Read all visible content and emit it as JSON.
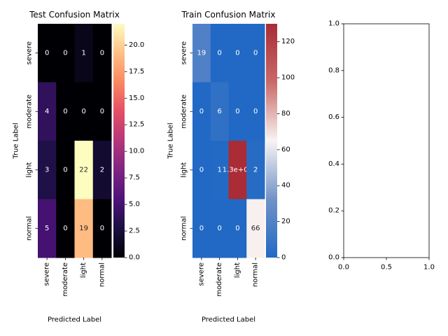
{
  "chart_data": [
    {
      "type": "heatmap",
      "title": "Test Confusion Matrix",
      "xlabel": "Predicted Label",
      "ylabel": "True Label",
      "x_categories": [
        "severe",
        "moderate",
        "light",
        "normal"
      ],
      "y_categories": [
        "severe",
        "moderate",
        "light",
        "normal"
      ],
      "values": [
        [
          0,
          0,
          1,
          0
        ],
        [
          4,
          0,
          0,
          0
        ],
        [
          3,
          0,
          22,
          2
        ],
        [
          5,
          0,
          19,
          0
        ]
      ],
      "cell_labels": [
        [
          "0",
          "0",
          "1",
          "0"
        ],
        [
          "4",
          "0",
          "0",
          "0"
        ],
        [
          "3",
          "0",
          "22",
          "2"
        ],
        [
          "5",
          "0",
          "19",
          "0"
        ]
      ],
      "colormap": "magma",
      "colorbar": {
        "min": 0,
        "max": 22,
        "ticks": [
          "0.0",
          "2.5",
          "5.0",
          "7.5",
          "10.0",
          "12.5",
          "15.0",
          "17.5",
          "20.0"
        ]
      }
    },
    {
      "type": "heatmap",
      "title": "Train Confusion Matrix",
      "xlabel": "Predicted Label",
      "ylabel": "True Label",
      "x_categories": [
        "severe",
        "moderate",
        "light",
        "normal"
      ],
      "y_categories": [
        "severe",
        "moderate",
        "light",
        "normal"
      ],
      "values": [
        [
          19,
          0,
          0,
          0
        ],
        [
          0,
          6,
          0,
          0
        ],
        [
          0,
          1,
          130,
          2
        ],
        [
          0,
          0,
          0,
          66
        ]
      ],
      "cell_labels": [
        [
          "19",
          "0",
          "0",
          "0"
        ],
        [
          "0",
          "6",
          "0",
          "0"
        ],
        [
          "0",
          "1",
          "1.3e+02",
          "2"
        ],
        [
          "0",
          "0",
          "0",
          "66"
        ]
      ],
      "colormap": "vlag",
      "colorbar": {
        "min": 0,
        "max": 130,
        "ticks": [
          "0",
          "20",
          "40",
          "60",
          "80",
          "100",
          "120"
        ]
      }
    },
    {
      "type": "scatter",
      "title": "",
      "empty": true,
      "xlim": [
        0,
        1
      ],
      "ylim": [
        0,
        1
      ],
      "xticks": [
        "0.0",
        "0.5",
        "1.0"
      ],
      "yticks": [
        "0.0",
        "0.2",
        "0.4",
        "0.6",
        "0.8",
        "1.0"
      ]
    }
  ],
  "colors": {
    "text_light": "#ffffff",
    "text_dark": "#262626",
    "axis": "#000000"
  }
}
